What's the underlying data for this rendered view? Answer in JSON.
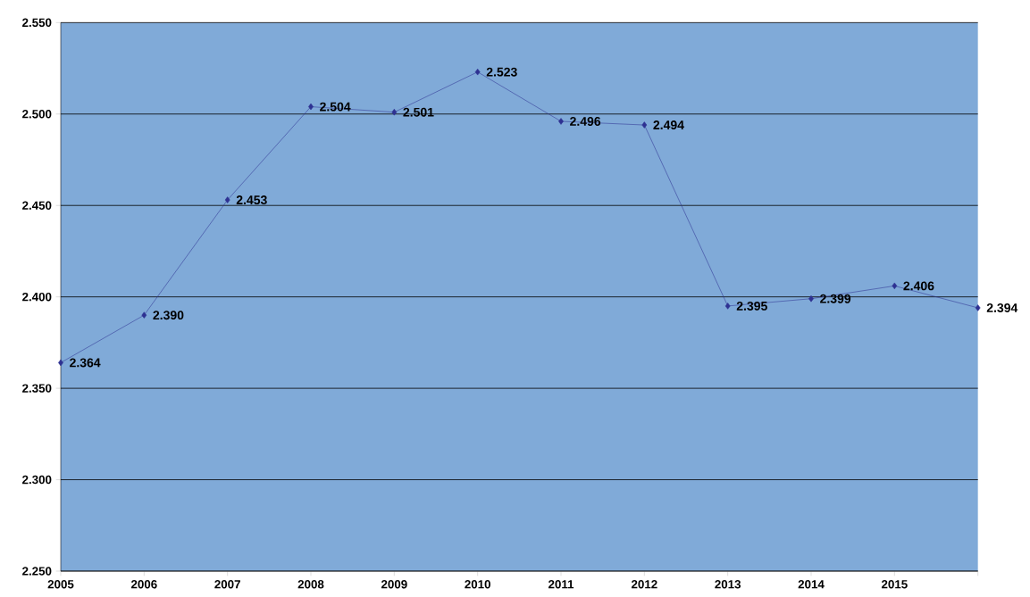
{
  "chart_data": {
    "type": "line",
    "categories": [
      "2005",
      "2006",
      "2007",
      "2008",
      "2009",
      "2010",
      "2011",
      "2012",
      "2013",
      "2014",
      "2015",
      null
    ],
    "series": [
      {
        "color": "#2e3192",
        "values": [
          2.364,
          2.39,
          2.453,
          2.504,
          2.501,
          2.523,
          2.496,
          2.494,
          2.395,
          2.399,
          2.406,
          2.394
        ],
        "value_labels": [
          "2.364",
          "2.390",
          "2.453",
          "2.504",
          "2.501",
          "2.523",
          "2.496",
          "2.494",
          "2.395",
          "2.399",
          "2.406",
          "2.394"
        ]
      }
    ],
    "ylim": [
      2.25,
      2.55
    ],
    "yticks": [
      {
        "value": 2.25,
        "label": "2.250"
      },
      {
        "value": 2.3,
        "label": "2.300"
      },
      {
        "value": 2.35,
        "label": "2.350"
      },
      {
        "value": 2.4,
        "label": "2.400"
      },
      {
        "value": 2.45,
        "label": "2.450"
      },
      {
        "value": 2.5,
        "label": "2.500"
      },
      {
        "value": 2.55,
        "label": "2.550"
      }
    ],
    "grid": "y",
    "marker": "diamond",
    "line_style": "solid"
  }
}
